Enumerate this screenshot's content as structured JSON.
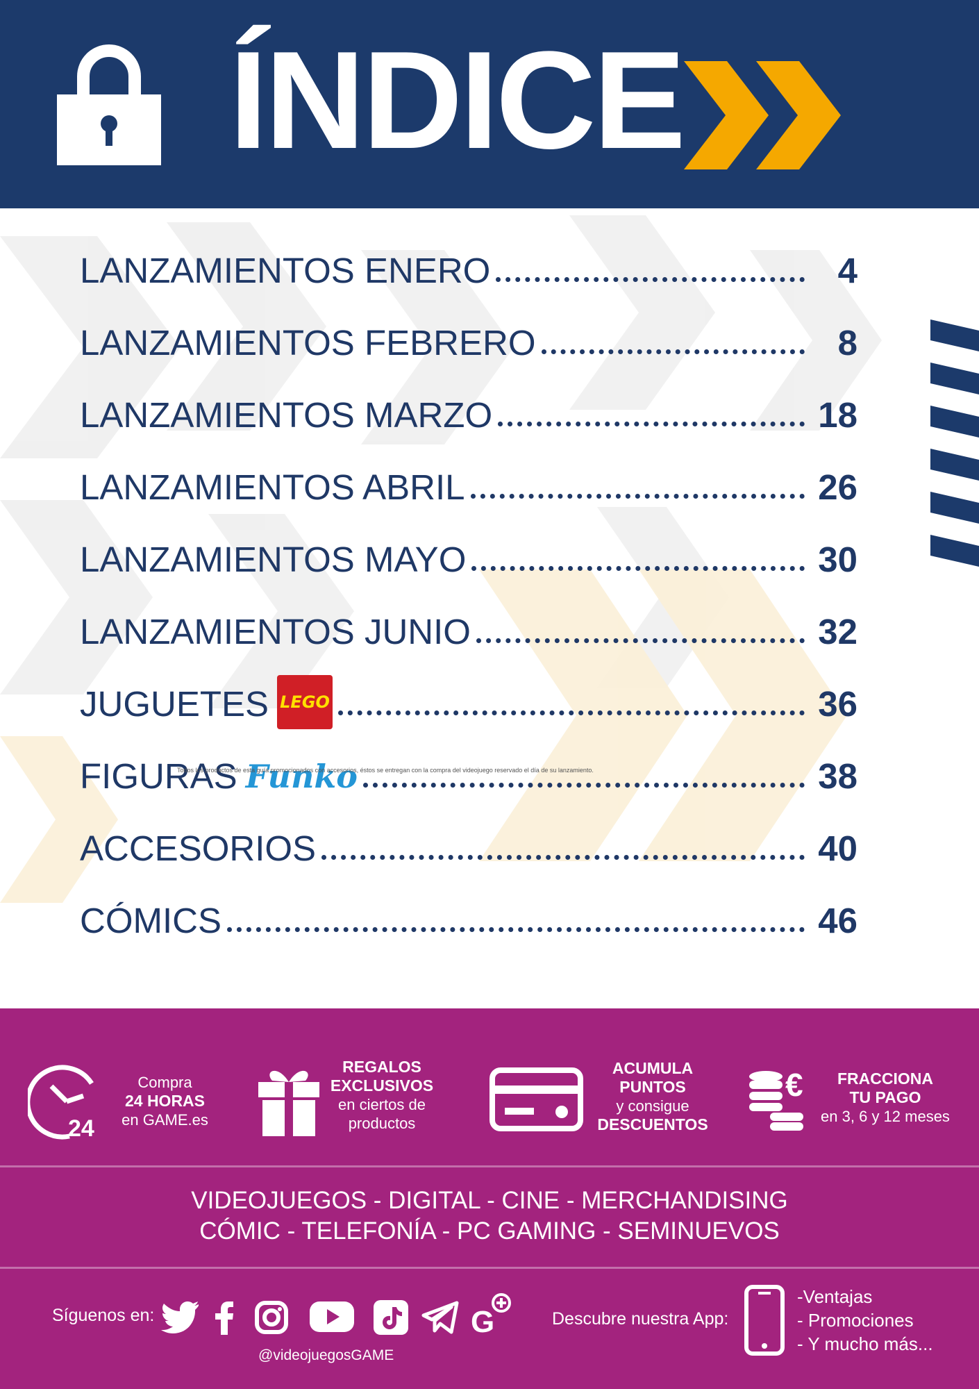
{
  "header": {
    "title": "ÍNDICE",
    "lock_icon": "lock-icon",
    "chevron_icon": "double-chevron-right-icon",
    "colors": {
      "background": "#1c3a6b",
      "accent": "#f5a800"
    }
  },
  "toc": {
    "items": [
      {
        "label": "LANZAMIENTOS ENERO",
        "page": "4"
      },
      {
        "label": "LANZAMIENTOS FEBRERO",
        "page": "8"
      },
      {
        "label": "LANZAMIENTOS MARZO",
        "page": "18"
      },
      {
        "label": "LANZAMIENTOS ABRIL",
        "page": "26"
      },
      {
        "label": "LANZAMIENTOS MAYO",
        "page": "30"
      },
      {
        "label": "LANZAMIENTOS JUNIO",
        "page": "32"
      },
      {
        "label": "JUGUETES",
        "page": "36",
        "logo": "LEGO"
      },
      {
        "label": "FIGURAS",
        "page": "38",
        "logo": "Funko"
      },
      {
        "label": "ACCESORIOS",
        "page": "40"
      },
      {
        "label": "CÓMICS",
        "page": "46"
      }
    ],
    "fineprint": "Todos los productos de esta guía promocionados con accesorios, éstos se entregan con la compra del videojuego reservado el día de su lanzamiento."
  },
  "footer": {
    "features": [
      {
        "icon": "clock-24-icon",
        "lines": [
          "Compra",
          "24 HORAS",
          "en GAME.es"
        ]
      },
      {
        "icon": "gift-icon",
        "lines": [
          "REGALOS",
          "EXCLUSIVOS",
          "en ciertos de",
          "productos"
        ]
      },
      {
        "icon": "card-icon",
        "lines": [
          "ACUMULA",
          "PUNTOS",
          "y consigue",
          "DESCUENTOS"
        ]
      },
      {
        "icon": "coins-euro-icon",
        "lines": [
          "FRACCIONA",
          "TU PAGO",
          "en 3, 6 y 12 meses"
        ]
      }
    ],
    "categories_line1": "VIDEOJUEGOS   -   DIGITAL   -   CINE   -   MERCHANDISING",
    "categories_line2": "CÓMIC   -   TELEFONÍA   -   PC GAMING   -   SEMINUEVOS",
    "social_label": "Síguenos en:",
    "social_icons": [
      "twitter-icon",
      "facebook-icon",
      "instagram-icon",
      "youtube-icon",
      "tiktok-icon",
      "telegram-icon",
      "game-plus-icon"
    ],
    "handle": "@videojuegosGAME",
    "app_label": "Descubre nuestra App:",
    "app_benefits": [
      "-Ventajas",
      "- Promociones",
      "- Y mucho más..."
    ]
  }
}
